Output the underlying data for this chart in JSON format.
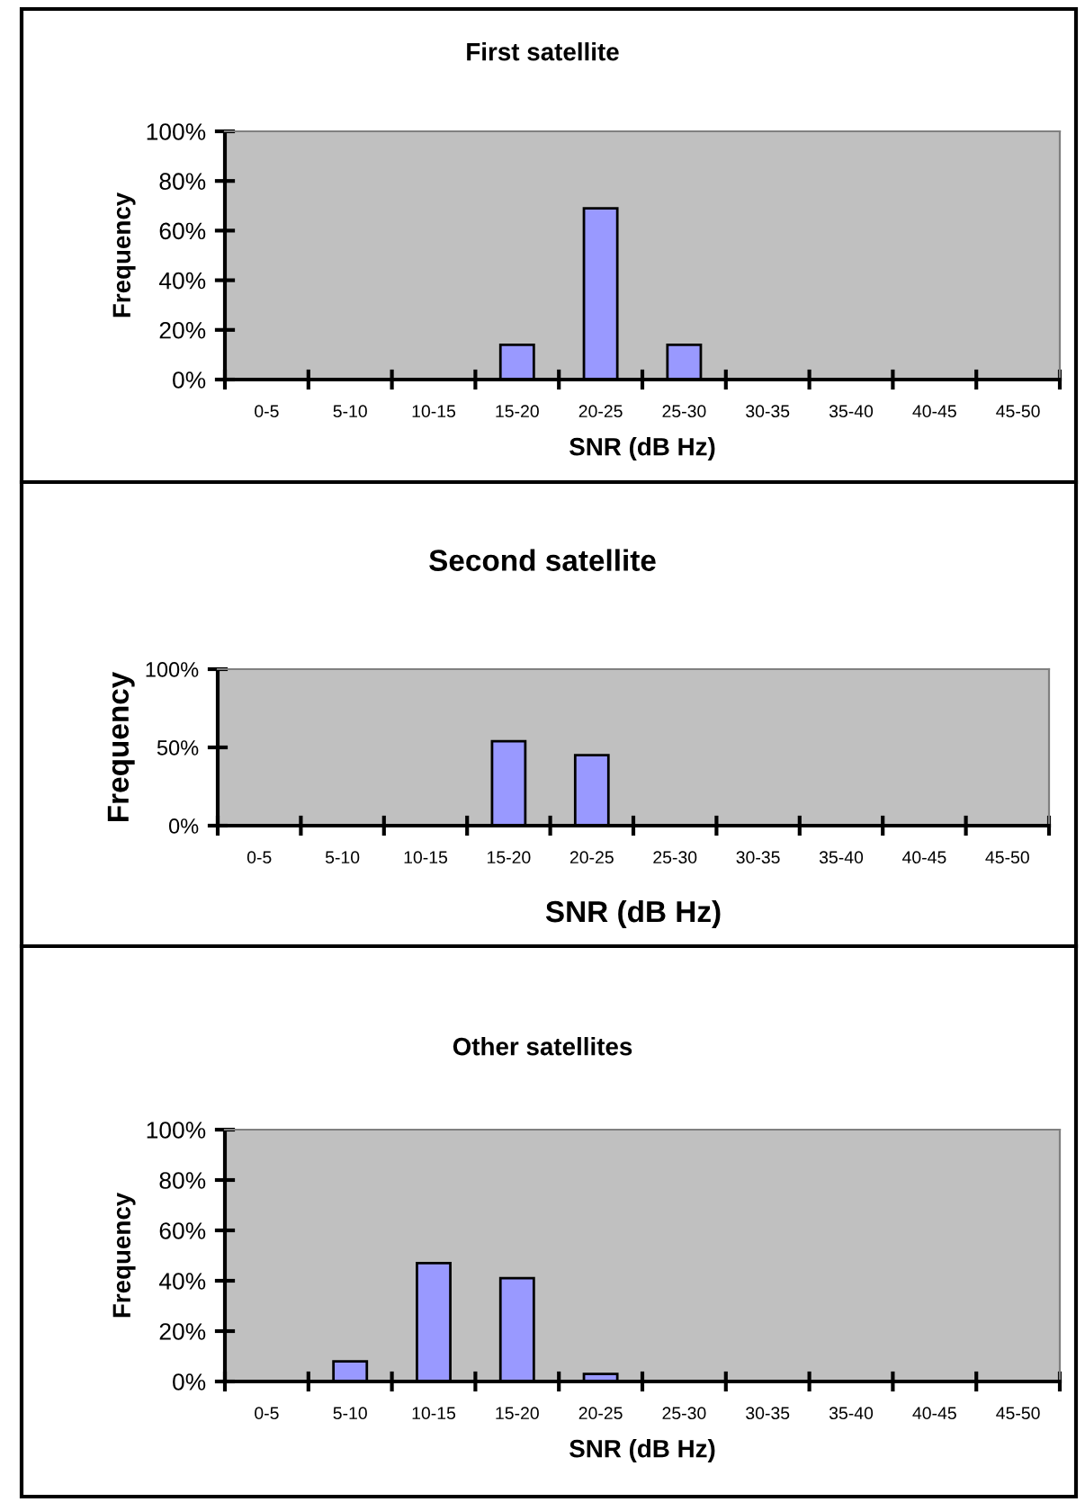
{
  "chart_data": [
    {
      "type": "bar",
      "title": "First satellite",
      "xlabel": "SNR (dB Hz)",
      "ylabel": "Frequency",
      "categories": [
        "0-5",
        "5-10",
        "10-15",
        "15-20",
        "20-25",
        "25-30",
        "30-35",
        "35-40",
        "40-45",
        "45-50"
      ],
      "values": [
        0,
        0,
        0,
        14,
        69,
        14,
        0,
        0,
        0,
        0
      ],
      "color": "#9999ff",
      "ylim": [
        0,
        100
      ],
      "yticks": [
        {
          "value": 0,
          "label": "0%"
        },
        {
          "value": 20,
          "label": "20%"
        },
        {
          "value": 40,
          "label": "40%"
        },
        {
          "value": 60,
          "label": "60%"
        },
        {
          "value": 80,
          "label": "80%"
        },
        {
          "value": 100,
          "label": "100%"
        }
      ]
    },
    {
      "type": "bar",
      "title": "Second satellite",
      "xlabel": "SNR (dB Hz)",
      "ylabel": "Frequency",
      "categories": [
        "0-5",
        "5-10",
        "10-15",
        "15-20",
        "20-25",
        "25-30",
        "30-35",
        "35-40",
        "40-45",
        "45-50"
      ],
      "values": [
        0,
        0,
        0,
        54,
        45,
        0,
        0,
        0,
        0,
        0
      ],
      "color": "#9999ff",
      "ylim": [
        0,
        100
      ],
      "yticks": [
        {
          "value": 0,
          "label": "0%"
        },
        {
          "value": 50,
          "label": "50%"
        },
        {
          "value": 100,
          "label": "100%"
        }
      ]
    },
    {
      "type": "bar",
      "title": "Other satellites",
      "xlabel": "SNR (dB Hz)",
      "ylabel": "Frequency",
      "categories": [
        "0-5",
        "5-10",
        "10-15",
        "15-20",
        "20-25",
        "25-30",
        "30-35",
        "35-40",
        "40-45",
        "45-50"
      ],
      "values": [
        0,
        8,
        47,
        41,
        3,
        0,
        0,
        0,
        0,
        0
      ],
      "color": "#9999ff",
      "ylim": [
        0,
        100
      ],
      "yticks": [
        {
          "value": 0,
          "label": "0%"
        },
        {
          "value": 20,
          "label": "20%"
        },
        {
          "value": 40,
          "label": "40%"
        },
        {
          "value": 60,
          "label": "60%"
        },
        {
          "value": 80,
          "label": "80%"
        },
        {
          "value": 100,
          "label": "100%"
        }
      ]
    }
  ]
}
